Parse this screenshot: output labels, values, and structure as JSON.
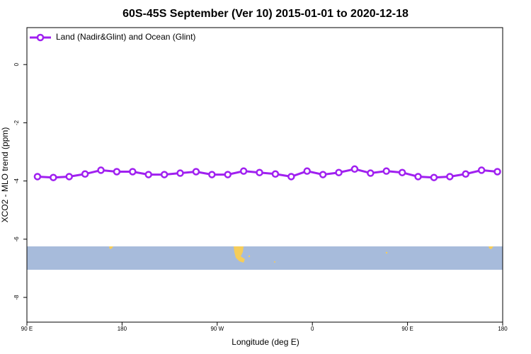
{
  "chart_data": {
    "type": "line",
    "title": "60S-45S September (Ver 10)   2015-01-01 to 2020-12-18",
    "xlabel": "Longitude (deg E)",
    "ylabel": "XCO2 - MLO trend (ppm)",
    "x": [
      100,
      115,
      130,
      145,
      160,
      175,
      190,
      205,
      220,
      235,
      250,
      265,
      280,
      295,
      310,
      325,
      340,
      355,
      370,
      385,
      400,
      415,
      430,
      445,
      460,
      475,
      490,
      505,
      520,
      535
    ],
    "series": [
      {
        "name": "Land (Nadir&Glint) and Ocean (Glint)",
        "color": "#a020f0",
        "values": [
          -3.85,
          -3.88,
          -3.85,
          -3.76,
          -3.63,
          -3.68,
          -3.68,
          -3.78,
          -3.78,
          -3.73,
          -3.68,
          -3.78,
          -3.78,
          -3.66,
          -3.71,
          -3.76,
          -3.85,
          -3.66,
          -3.78,
          -3.71,
          -3.59,
          -3.73,
          -3.66,
          -3.71,
          -3.85,
          -3.88,
          -3.85,
          -3.76,
          -3.63,
          -3.68
        ]
      }
    ],
    "xlim": [
      90,
      540
    ],
    "xticks": [
      {
        "value": 90,
        "label": "90 E"
      },
      {
        "value": 180,
        "label": "180"
      },
      {
        "value": 270,
        "label": "90 W"
      },
      {
        "value": 360,
        "label": "0"
      },
      {
        "value": 450,
        "label": "90 E"
      },
      {
        "value": 540,
        "label": "180"
      }
    ],
    "ylim": [
      -8.85,
      1.27
    ],
    "yticks": [
      0,
      -2,
      -4,
      -6,
      -8
    ],
    "legend": "top-left"
  }
}
